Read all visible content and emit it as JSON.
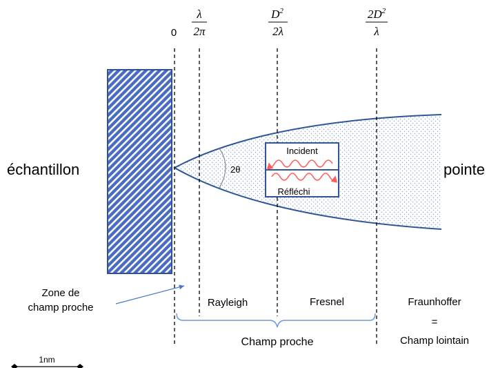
{
  "labels": {
    "sample": "échantillon",
    "tip": "pointe",
    "angle": "2θ",
    "incident": "Incident",
    "reflected": "Réfléchi",
    "near_zone_line1": "Zone de",
    "near_zone_line2": "champ proche",
    "rayleigh": "Rayleigh",
    "fresnel": "Fresnel",
    "fraunhofer": "Fraunhoffer",
    "equals": "=",
    "far_field": "Champ lointain",
    "near_field": "Champ proche",
    "scale": "1nm"
  },
  "boundaries": {
    "zero": "0",
    "b1_num": "λ",
    "b1_den": "2π",
    "b2_num_base": "D",
    "b2_num_exp": "2",
    "b2_den": "2λ",
    "b3_num_pre": "2",
    "b3_num_base": "D",
    "b3_num_exp": "2",
    "b3_den": "λ"
  },
  "colors": {
    "sample_fill": "#4a6cc0",
    "sample_stroke": "#2f4f9a",
    "cone_stroke": "#2f5597",
    "cone_dots": "#8aa6d8",
    "wave": "#ff5c5c",
    "box_stroke": "#2f5597",
    "callout_arrow": "#4a78c8",
    "brace": "#6f96d6"
  }
}
